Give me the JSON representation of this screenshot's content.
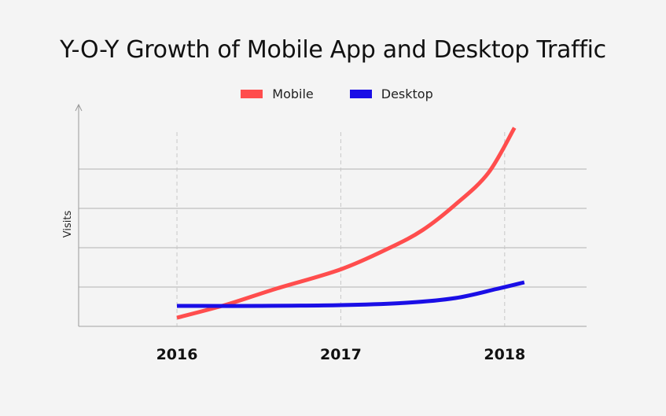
{
  "chart_data": {
    "type": "line",
    "title": "Y-O-Y Growth of Mobile App and Desktop Traffic",
    "xlabel": "",
    "ylabel": "Visits",
    "categories": [
      "2016",
      "2017",
      "2018"
    ],
    "x_range": [
      2015.4,
      2018.5
    ],
    "ylim": [
      0,
      5
    ],
    "grid": {
      "horizontal": true,
      "vertical_dashed": true
    },
    "legend_position": "top-center",
    "series": [
      {
        "name": "Mobile",
        "color": "#ff4d4d",
        "points": [
          [
            2016.0,
            0.22
          ],
          [
            2016.3,
            0.55
          ],
          [
            2016.6,
            0.95
          ],
          [
            2017.0,
            1.45
          ],
          [
            2017.3,
            2.0
          ],
          [
            2017.5,
            2.45
          ],
          [
            2017.7,
            3.1
          ],
          [
            2017.9,
            3.9
          ],
          [
            2018.06,
            5.05
          ]
        ]
      },
      {
        "name": "Desktop",
        "color": "#1a0ee6",
        "points": [
          [
            2016.0,
            0.52
          ],
          [
            2016.5,
            0.52
          ],
          [
            2017.0,
            0.54
          ],
          [
            2017.4,
            0.6
          ],
          [
            2017.7,
            0.72
          ],
          [
            2017.95,
            0.95
          ],
          [
            2018.12,
            1.12
          ]
        ]
      }
    ]
  }
}
